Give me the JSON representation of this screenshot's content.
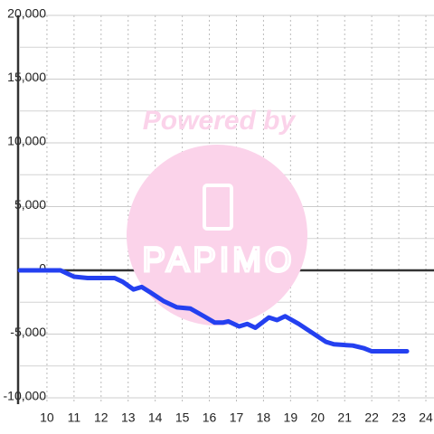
{
  "chart_data": {
    "type": "line",
    "watermark": "Powered by",
    "watermark_logo": "PAPIMO",
    "x": [
      9.0,
      10.5,
      10.8,
      11.0,
      11.5,
      12.5,
      12.8,
      13.2,
      13.5,
      13.8,
      14.3,
      14.8,
      15.3,
      15.8,
      16.2,
      16.5,
      16.7,
      17.1,
      17.4,
      17.7,
      18.2,
      18.5,
      18.8,
      19.3,
      19.8,
      20.3,
      20.6,
      21.3,
      21.7,
      22.0,
      23.3
    ],
    "series": [
      {
        "color": "#2440f0",
        "values": [
          0,
          0,
          -300,
          -500,
          -600,
          -600,
          -900,
          -1500,
          -1300,
          -1700,
          -2400,
          -2900,
          -3000,
          -3600,
          -4100,
          -4100,
          -4000,
          -4400,
          -4200,
          -4500,
          -3700,
          -3900,
          -3600,
          -4200,
          -4900,
          -5600,
          -5800,
          -5900,
          -6100,
          -6350,
          -6350
        ]
      }
    ],
    "xlim": [
      9,
      24.3
    ],
    "xticks": [
      10,
      11,
      12,
      13,
      14,
      15,
      16,
      17,
      18,
      19,
      20,
      21,
      22,
      23,
      24
    ],
    "ylim": [
      -10000,
      20000
    ],
    "yticks": [
      {
        "value": -10000,
        "label": "-10,000"
      },
      {
        "value": -5000,
        "label": "-5,000"
      },
      0,
      {
        "value": 5000,
        "label": "5,000"
      },
      {
        "value": 10000,
        "label": "10,000"
      },
      {
        "value": 15000,
        "label": "15,000"
      },
      {
        "value": 20000,
        "label": "20,000"
      }
    ],
    "yminorticks": [
      -7500,
      -2500,
      2500,
      7500,
      12500,
      17500
    ],
    "grid": true
  }
}
